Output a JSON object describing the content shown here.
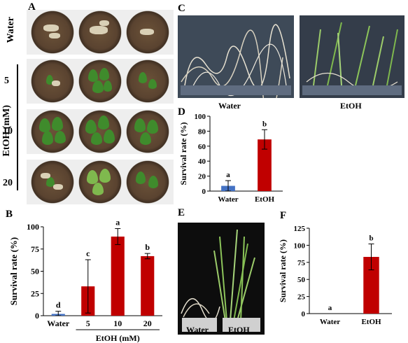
{
  "panels": {
    "A": "A",
    "B": "B",
    "C": "C",
    "D": "D",
    "E": "E",
    "F": "F"
  },
  "panel_a": {
    "row_labels": [
      "Water",
      "5",
      "10",
      "20"
    ],
    "group_label": "EtOH (mM)"
  },
  "panel_c": {
    "labels": [
      "Water",
      "EtOH"
    ]
  },
  "panel_e": {
    "labels": [
      "Water",
      "EtOH"
    ]
  },
  "colors": {
    "water_bar": "#4472c4",
    "etoh_bar": "#c00000"
  },
  "chart_data": [
    {
      "id": "B",
      "type": "bar",
      "categories": [
        "Water",
        "5",
        "10",
        "20"
      ],
      "values": [
        2,
        33,
        89,
        67
      ],
      "errors": [
        3,
        30,
        9,
        3
      ],
      "letters": [
        "d",
        "c",
        "a",
        "b"
      ],
      "bar_colors": [
        "#4472c4",
        "#c00000",
        "#c00000",
        "#c00000"
      ],
      "ylabel": "Survival rate (%)",
      "xlabel": "EtOH (mM)",
      "ylim": [
        0,
        100
      ],
      "yticks": [
        0,
        25,
        50,
        75,
        100
      ]
    },
    {
      "id": "D",
      "type": "bar",
      "categories": [
        "Water",
        "EtOH"
      ],
      "values": [
        7,
        69
      ],
      "errors": [
        7,
        13
      ],
      "letters": [
        "a",
        "b"
      ],
      "bar_colors": [
        "#4472c4",
        "#c00000"
      ],
      "ylabel": "Survival rate (%)",
      "ylim": [
        0,
        100
      ],
      "yticks": [
        0,
        20,
        40,
        60,
        80,
        100
      ]
    },
    {
      "id": "F",
      "type": "bar",
      "categories": [
        "Water",
        "EtOH"
      ],
      "values": [
        0,
        83
      ],
      "errors": [
        0,
        19
      ],
      "letters": [
        "a",
        "b"
      ],
      "bar_colors": [
        "#4472c4",
        "#c00000"
      ],
      "ylabel": "Survival rate (%)",
      "ylim": [
        0,
        125
      ],
      "yticks": [
        0,
        25,
        50,
        75,
        100,
        125
      ]
    }
  ]
}
